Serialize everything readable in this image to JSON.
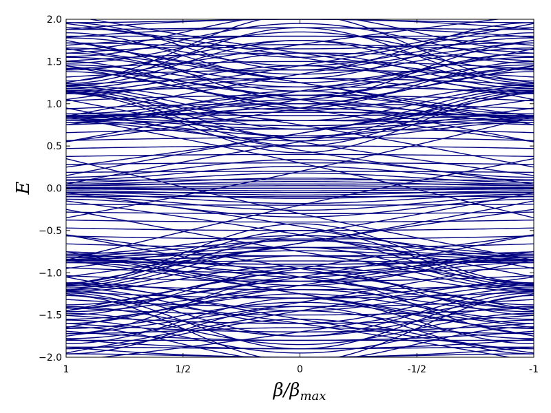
{
  "chart_data": {
    "type": "line",
    "title": "",
    "xlabel": "β/β_max",
    "xlabel_main": "β/β",
    "xlabel_sub": "max",
    "ylabel": "E",
    "xlim": [
      1,
      -1
    ],
    "ylim": [
      -2.0,
      2.0
    ],
    "x_ticks": [
      1,
      0.5,
      0,
      -0.5,
      -1
    ],
    "x_tick_labels": [
      "1",
      "1/2",
      "0",
      "-1/2",
      "-1"
    ],
    "y_ticks": [
      -2.0,
      -1.5,
      -1.0,
      -0.5,
      0.0,
      0.5,
      1.0,
      1.5,
      2.0
    ],
    "y_tick_labels": [
      "−2.0",
      "−1.5",
      "−1.0",
      "−0.5",
      "0.0",
      "0.5",
      "1.0",
      "1.5",
      "2.0"
    ],
    "grid": false,
    "legend": "none",
    "line_color": "#000080",
    "band_groups": [
      {
        "edge": [
          0.0,
          0.01,
          -0.01,
          0.03,
          -0.03,
          0.05,
          -0.05,
          0.07,
          -0.07,
          0.1,
          -0.1,
          0.13,
          -0.13
        ],
        "center": [
          0.0,
          0.03,
          -0.03,
          0.08,
          -0.08,
          0.12,
          -0.12,
          0.18,
          -0.18,
          0.26,
          -0.26,
          0.34,
          -0.34
        ]
      },
      {
        "edge": [
          0.78,
          0.8,
          0.82,
          0.84,
          0.86,
          0.88
        ],
        "center": [
          0.56,
          0.62,
          0.7,
          0.74,
          0.8,
          0.86
        ]
      },
      {
        "edge": [
          -0.78,
          -0.8,
          -0.82,
          -0.84,
          -0.86,
          -0.88
        ],
        "center": [
          -0.56,
          -0.62,
          -0.7,
          -0.74,
          -0.8,
          -0.86
        ]
      },
      {
        "edge": [
          0.78,
          0.8,
          0.82,
          0.84,
          0.86,
          0.88
        ],
        "center": [
          1.05,
          0.95,
          1.15,
          1.0,
          0.9,
          1.1
        ]
      },
      {
        "edge": [
          -0.78,
          -0.8,
          -0.82,
          -0.84,
          -0.86,
          -0.88
        ],
        "center": [
          -1.05,
          -0.95,
          -1.15,
          -1.0,
          -0.9,
          -1.1
        ]
      },
      {
        "edge": [
          1.12,
          1.14,
          1.16,
          1.18,
          1.2,
          1.22
        ],
        "center": [
          0.42,
          0.5,
          0.6,
          0.7,
          0.8,
          0.92
        ]
      },
      {
        "edge": [
          -1.12,
          -1.14,
          -1.16,
          -1.18,
          -1.2,
          -1.22
        ],
        "center": [
          -0.42,
          -0.5,
          -0.6,
          -0.7,
          -0.8,
          -0.92
        ]
      },
      {
        "edge": [
          1.12,
          1.15,
          1.18,
          1.21,
          1.24,
          1.27
        ],
        "center": [
          1.3,
          1.45,
          1.6,
          1.75,
          1.9,
          2.05
        ]
      },
      {
        "edge": [
          -1.12,
          -1.15,
          -1.18,
          -1.21,
          -1.24,
          -1.27
        ],
        "center": [
          -1.3,
          -1.45,
          -1.6,
          -1.75,
          -1.9,
          -2.05
        ]
      },
      {
        "edge": [
          1.38,
          1.42,
          1.46,
          1.5,
          1.55,
          1.6,
          1.66,
          1.72,
          1.78,
          1.84,
          1.9,
          1.96
        ],
        "center": [
          1.0,
          1.1,
          1.2,
          0.95,
          1.25,
          1.15,
          1.35,
          1.05,
          1.45,
          1.3,
          1.55,
          1.4
        ]
      },
      {
        "edge": [
          -1.38,
          -1.42,
          -1.46,
          -1.5,
          -1.55,
          -1.6,
          -1.66,
          -1.72,
          -1.78,
          -1.84,
          -1.9,
          -1.96
        ],
        "center": [
          -1.0,
          -1.1,
          -1.2,
          -0.95,
          -1.25,
          -1.15,
          -1.35,
          -1.05,
          -1.45,
          -1.3,
          -1.55,
          -1.4
        ]
      },
      {
        "edge": [
          1.4,
          1.48,
          1.56,
          1.64,
          1.72,
          1.8,
          1.88,
          1.96
        ],
        "center": [
          1.75,
          1.85,
          1.95,
          2.05,
          1.65,
          1.8,
          1.9,
          2.0
        ]
      },
      {
        "edge": [
          -1.4,
          -1.48,
          -1.56,
          -1.64,
          -1.72,
          -1.8,
          -1.88,
          -1.96
        ],
        "center": [
          -1.75,
          -1.85,
          -1.95,
          -2.05,
          -1.65,
          -1.8,
          -1.9,
          -2.0
        ]
      }
    ],
    "center_flat_levels": [
      0.0,
      0.05,
      -0.05,
      0.1,
      -0.1,
      0.2,
      -0.2,
      0.3,
      -0.3,
      0.4,
      -0.4,
      0.5,
      -0.5,
      0.6,
      -0.6,
      0.7,
      -0.7,
      0.8,
      -0.8,
      0.9,
      -0.9,
      1.0,
      -1.0,
      1.1,
      -1.1,
      1.2,
      -1.2,
      1.3,
      -1.3,
      1.4,
      -1.4,
      1.5,
      -1.5,
      1.6,
      -1.6,
      1.7,
      -1.7,
      1.8,
      -1.8,
      1.9,
      -1.9,
      2.0,
      -2.0
    ],
    "crossing_lines": [
      {
        "from": 0.05,
        "to": 0.95
      },
      {
        "from": -0.05,
        "to": -0.95
      },
      {
        "from": 0.15,
        "to": 1.05
      },
      {
        "from": -0.15,
        "to": -1.05
      },
      {
        "from": 0.55,
        "to": 1.45
      },
      {
        "from": -0.55,
        "to": -1.45
      },
      {
        "from": 0.85,
        "to": 1.75
      },
      {
        "from": -0.85,
        "to": -1.75
      },
      {
        "from": 0.85,
        "to": -0.35
      },
      {
        "from": -0.85,
        "to": 0.35
      },
      {
        "from": 1.15,
        "to": 0.25
      },
      {
        "from": -1.15,
        "to": -0.25
      },
      {
        "from": 1.45,
        "to": 0.55
      },
      {
        "from": -1.45,
        "to": -0.55
      },
      {
        "from": 1.65,
        "to": 0.75
      },
      {
        "from": -1.65,
        "to": -0.75
      },
      {
        "from": 1.95,
        "to": 1.05
      },
      {
        "from": -1.95,
        "to": -1.05
      },
      {
        "from": 1.25,
        "to": 2.05
      },
      {
        "from": -1.25,
        "to": -2.05
      }
    ]
  }
}
